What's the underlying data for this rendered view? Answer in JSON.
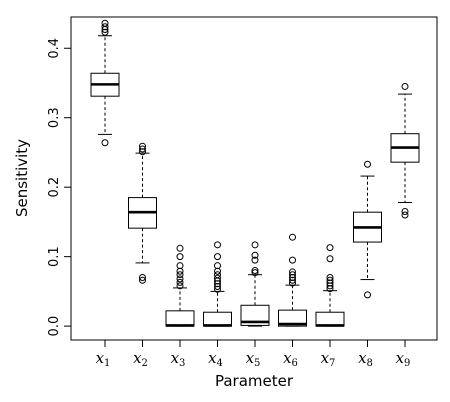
{
  "chart_data": {
    "type": "boxplot",
    "xlabel": "Parameter",
    "ylabel": "Sensitivity",
    "ylim": [
      -0.02,
      0.445
    ],
    "yticks": [
      "0.0",
      "0.1",
      "0.2",
      "0.3",
      "0.4"
    ],
    "ytick_values": [
      0.0,
      0.1,
      0.2,
      0.3,
      0.4
    ],
    "categories": [
      {
        "base": "x",
        "sub": "1"
      },
      {
        "base": "x",
        "sub": "2"
      },
      {
        "base": "x",
        "sub": "3"
      },
      {
        "base": "x",
        "sub": "4"
      },
      {
        "base": "x",
        "sub": "5"
      },
      {
        "base": "x",
        "sub": "6"
      },
      {
        "base": "x",
        "sub": "7"
      },
      {
        "base": "x",
        "sub": "8"
      },
      {
        "base": "x",
        "sub": "9"
      }
    ],
    "boxes": [
      {
        "whisker_low": 0.276,
        "q1": 0.331,
        "median": 0.348,
        "q3": 0.364,
        "whisker_high": 0.418,
        "outliers": [
          0.264,
          0.423,
          0.427,
          0.431,
          0.436
        ]
      },
      {
        "whisker_low": 0.091,
        "q1": 0.141,
        "median": 0.164,
        "q3": 0.185,
        "whisker_high": 0.249,
        "outliers": [
          0.066,
          0.07,
          0.251,
          0.255,
          0.259
        ]
      },
      {
        "whisker_low": 0.0,
        "q1": 0.0,
        "median": 0.001,
        "q3": 0.022,
        "whisker_high": 0.055,
        "outliers": [
          0.058,
          0.063,
          0.068,
          0.074,
          0.079,
          0.087,
          0.1,
          0.112
        ]
      },
      {
        "whisker_low": 0.0,
        "q1": 0.0,
        "median": 0.001,
        "q3": 0.02,
        "whisker_high": 0.05,
        "outliers": [
          0.053,
          0.057,
          0.061,
          0.065,
          0.069,
          0.074,
          0.079,
          0.087,
          0.1,
          0.117
        ]
      },
      {
        "whisker_low": 0.0,
        "q1": 0.001,
        "median": 0.006,
        "q3": 0.03,
        "whisker_high": 0.074,
        "outliers": [
          0.077,
          0.08,
          0.095,
          0.102,
          0.117
        ]
      },
      {
        "whisker_low": 0.0,
        "q1": 0.0,
        "median": 0.003,
        "q3": 0.023,
        "whisker_high": 0.059,
        "outliers": [
          0.062,
          0.066,
          0.07,
          0.074,
          0.078,
          0.095,
          0.128
        ]
      },
      {
        "whisker_low": 0.0,
        "q1": 0.0,
        "median": 0.001,
        "q3": 0.02,
        "whisker_high": 0.051,
        "outliers": [
          0.054,
          0.058,
          0.062,
          0.066,
          0.07,
          0.097,
          0.113
        ]
      },
      {
        "whisker_low": 0.067,
        "q1": 0.121,
        "median": 0.142,
        "q3": 0.164,
        "whisker_high": 0.216,
        "outliers": [
          0.045,
          0.233
        ]
      },
      {
        "whisker_low": 0.178,
        "q1": 0.236,
        "median": 0.257,
        "q3": 0.277,
        "whisker_high": 0.334,
        "outliers": [
          0.16,
          0.165,
          0.345
        ]
      }
    ]
  }
}
